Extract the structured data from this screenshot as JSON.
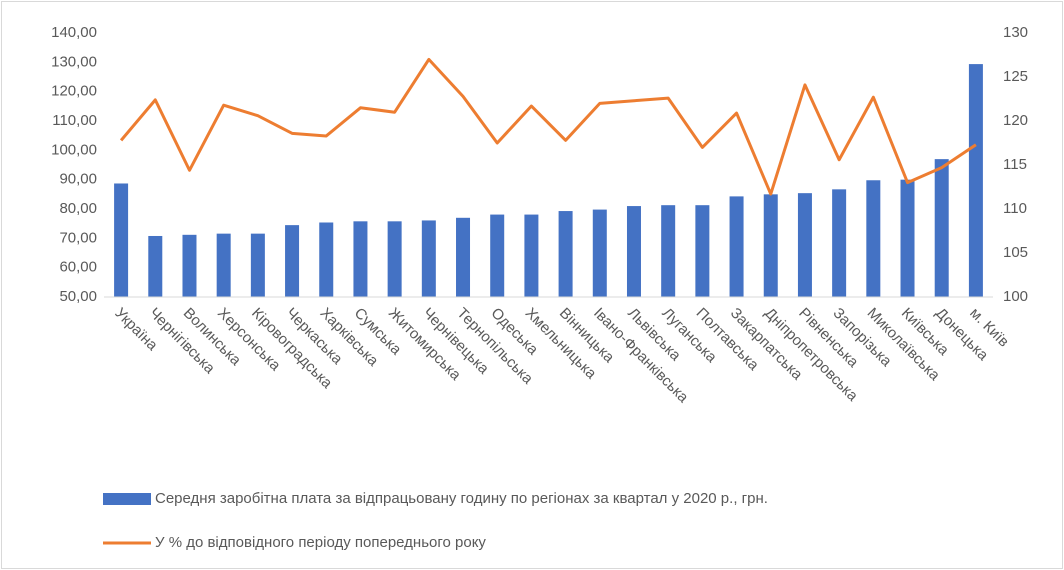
{
  "chart_data": {
    "type": "combo",
    "categories": [
      "Україна",
      "Чернігівська",
      "Волинська",
      "Херсонська",
      "Кіровоградська",
      "Черкаська",
      "Харківська",
      "Сумська",
      "Житомирська",
      "Чернівецька",
      "Тернопільська",
      "Одеська",
      "Хмельницька",
      "Вінницька",
      "Івано-Франківська",
      "Львівська",
      "Луганська",
      "Полтавська",
      "Закарпатська",
      "Дніпропетровська",
      "Рівненська",
      "Запорізька",
      "Миколаївська",
      "Київська",
      "Донецька",
      "м. Київ"
    ],
    "series": [
      {
        "name": "Середня заробітна плата за відпрацьовану годину по регіонах за квартал у 2020 р., грн.",
        "type": "bar",
        "color": "#4472c4",
        "values": [
          88.7,
          70.8,
          71.2,
          71.6,
          71.6,
          74.5,
          75.4,
          75.8,
          75.8,
          76.1,
          77.0,
          78.1,
          78.1,
          79.3,
          79.8,
          81.0,
          81.3,
          81.3,
          84.3,
          85.0,
          85.4,
          86.7,
          89.8,
          90.0,
          97.0,
          129.4
        ]
      },
      {
        "name": "У % до відповідного періоду попереднього року",
        "type": "line",
        "color": "#ed7d31",
        "axis": "y2",
        "values": [
          117.8,
          122.4,
          114.4,
          121.8,
          120.6,
          118.6,
          118.3,
          121.5,
          121.0,
          127.0,
          122.8,
          117.5,
          121.7,
          117.8,
          122.0,
          122.3,
          122.6,
          117.0,
          120.9,
          111.7,
          124.1,
          115.6,
          122.7,
          113.0,
          114.7,
          117.3
        ]
      }
    ],
    "ylim": [
      50,
      140
    ],
    "yticks": [
      {
        "value": 50,
        "label": "50,00"
      },
      {
        "value": 60,
        "label": "60,00"
      },
      {
        "value": 70,
        "label": "70,00"
      },
      {
        "value": 80,
        "label": "80,00"
      },
      {
        "value": 90,
        "label": "90,00"
      },
      {
        "value": 100,
        "label": "100,00"
      },
      {
        "value": 110,
        "label": "110,00"
      },
      {
        "value": 120,
        "label": "120,00"
      },
      {
        "value": 130,
        "label": "130,00"
      },
      {
        "value": 140,
        "label": "140,00"
      }
    ],
    "y2lim": [
      100,
      130
    ],
    "y2ticks": [
      100,
      105,
      110,
      115,
      120,
      125,
      130
    ],
    "grid": false,
    "legend": "bottom"
  }
}
